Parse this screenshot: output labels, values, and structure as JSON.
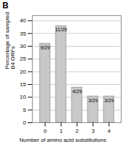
{
  "chart_data": {
    "type": "bar",
    "title": "B",
    "categories": [
      0,
      1,
      2,
      3,
      4
    ],
    "values": [
      31.03,
      37.93,
      13.79,
      10.34,
      10.34
    ],
    "value_labels": [
      "9/29",
      "11/29",
      "4/29",
      "3/29",
      "3/29"
    ],
    "data_labels": true,
    "color": "#c8c8c8",
    "xlabel": "Number of amino acid substitutions",
    "ylabel": "Percentage of sampled\nB4 ORFs",
    "ylim": [
      0,
      42
    ],
    "yticks": [
      0,
      5,
      10,
      15,
      20,
      25,
      30,
      35,
      40
    ],
    "grid": true
  }
}
